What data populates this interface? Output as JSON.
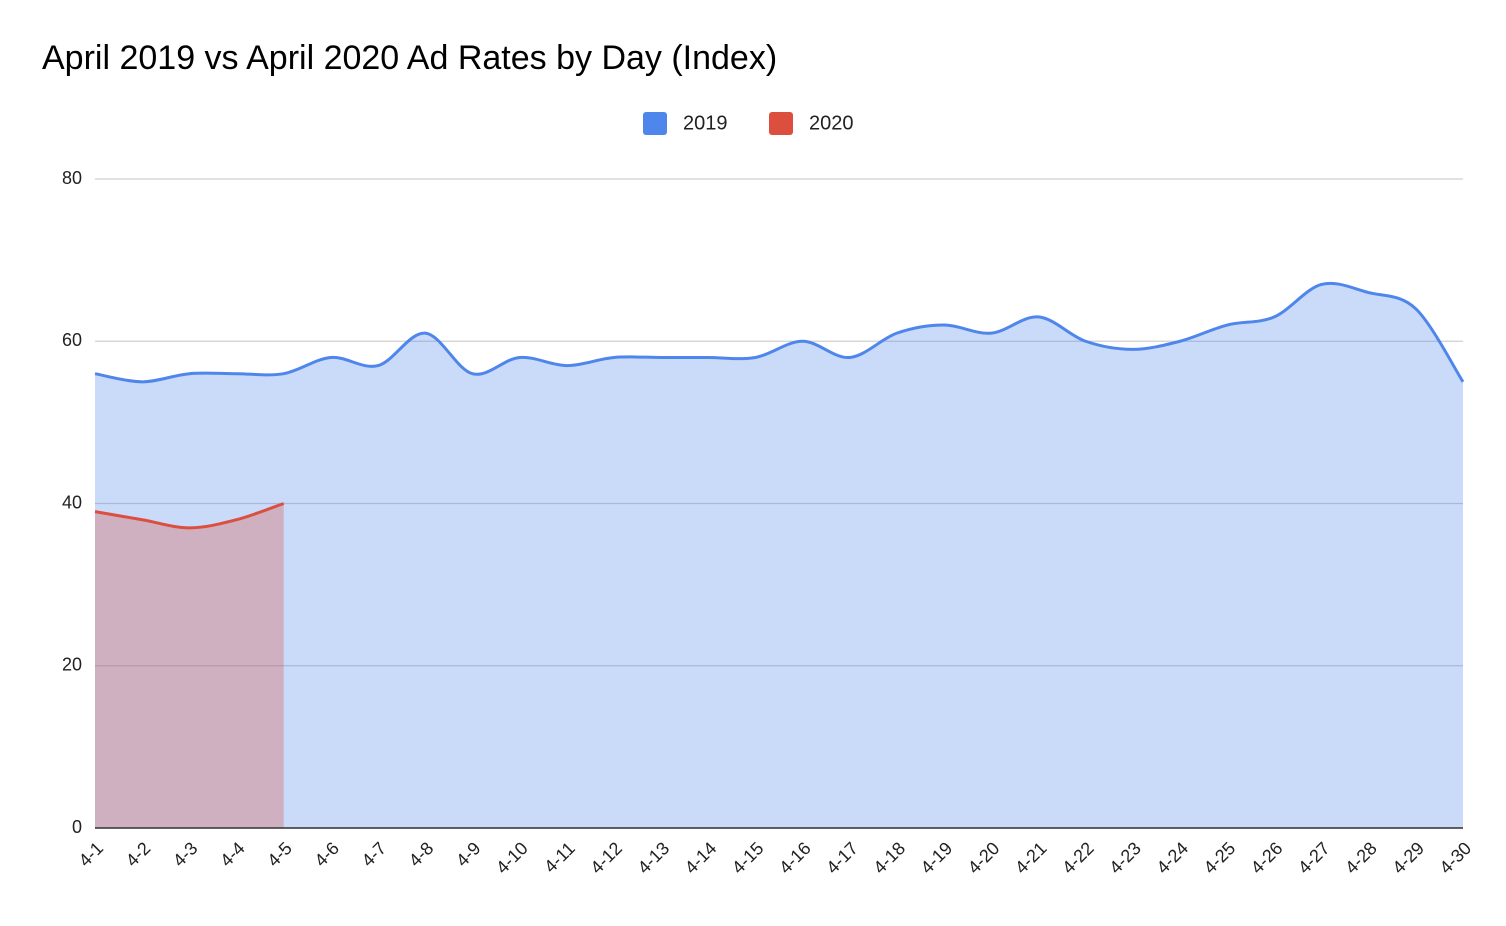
{
  "chart_data": {
    "type": "area",
    "title": "April 2019 vs April 2020 Ad Rates by Day (Index)",
    "categories": [
      "4-1",
      "4-2",
      "4-3",
      "4-4",
      "4-5",
      "4-6",
      "4-7",
      "4-8",
      "4-9",
      "4-10",
      "4-11",
      "4-12",
      "4-13",
      "4-14",
      "4-15",
      "4-16",
      "4-17",
      "4-18",
      "4-19",
      "4-20",
      "4-21",
      "4-22",
      "4-23",
      "4-24",
      "4-25",
      "4-26",
      "4-27",
      "4-28",
      "4-29",
      "4-30"
    ],
    "series": [
      {
        "name": "2019",
        "color": "#4f86ec",
        "values": [
          56,
          55,
          56,
          56,
          56,
          58,
          57,
          61,
          56,
          58,
          57,
          58,
          58,
          58,
          58,
          60,
          58,
          61,
          62,
          61,
          63,
          60,
          59,
          60,
          62,
          63,
          67,
          66,
          64,
          55
        ]
      },
      {
        "name": "2020",
        "color": "#dc4f3f",
        "values": [
          39,
          38,
          37,
          38,
          40,
          null,
          null,
          null,
          null,
          null,
          null,
          null,
          null,
          null,
          null,
          null,
          null,
          null,
          null,
          null,
          null,
          null,
          null,
          null,
          null,
          null,
          null,
          null,
          null,
          null
        ]
      }
    ],
    "ylim": [
      0,
      80
    ],
    "yticks": [
      0,
      20,
      40,
      60,
      80
    ],
    "grid": true,
    "legend": "top"
  }
}
